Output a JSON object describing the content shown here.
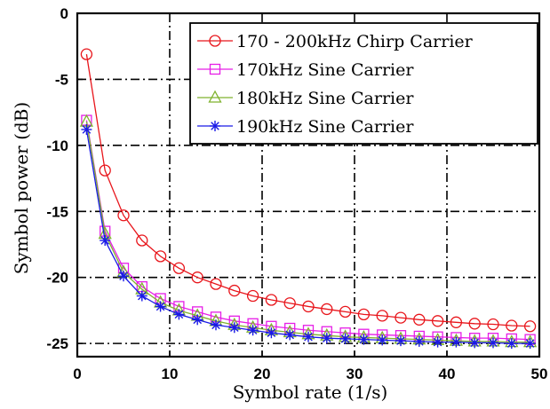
{
  "chart_data": {
    "type": "line",
    "xlabel": "Symbol rate (1/s)",
    "ylabel": "Symbol power (dB)",
    "xlim": [
      0,
      50
    ],
    "ylim": [
      -26,
      0
    ],
    "xticks": [
      0,
      10,
      20,
      30,
      40,
      50
    ],
    "yticks": [
      0,
      -5,
      -10,
      -15,
      -20,
      -25
    ],
    "grid": "dash-dot, major ticks",
    "legend_position": "top-right",
    "x": [
      1,
      3,
      5,
      7,
      9,
      11,
      13,
      15,
      17,
      19,
      21,
      23,
      25,
      27,
      29,
      31,
      33,
      35,
      37,
      39,
      41,
      43,
      45,
      47,
      49
    ],
    "series": [
      {
        "name": "170 - 200kHz Chirp Carrier",
        "color": "#e8151b",
        "marker": "circle",
        "values": [
          -3.1,
          -11.9,
          -15.3,
          -17.2,
          -18.4,
          -19.3,
          -20.0,
          -20.5,
          -21.0,
          -21.4,
          -21.7,
          -21.95,
          -22.2,
          -22.4,
          -22.6,
          -22.8,
          -22.9,
          -23.05,
          -23.2,
          -23.3,
          -23.4,
          -23.5,
          -23.55,
          -23.65,
          -23.7
        ]
      },
      {
        "name": "170kHz Sine Carrier",
        "color": "#e61ee6",
        "marker": "square",
        "values": [
          -8.1,
          -16.5,
          -19.3,
          -20.7,
          -21.6,
          -22.2,
          -22.6,
          -23.0,
          -23.3,
          -23.5,
          -23.7,
          -23.85,
          -24.0,
          -24.1,
          -24.2,
          -24.3,
          -24.35,
          -24.4,
          -24.45,
          -24.5,
          -24.55,
          -24.6,
          -24.6,
          -24.65,
          -24.7
        ]
      },
      {
        "name": "180kHz Sine Carrier",
        "color": "#7fb22e",
        "marker": "triangle",
        "values": [
          -8.2,
          -16.7,
          -19.6,
          -20.9,
          -21.9,
          -22.5,
          -22.9,
          -23.3,
          -23.6,
          -23.8,
          -24.0,
          -24.15,
          -24.3,
          -24.4,
          -24.5,
          -24.55,
          -24.6,
          -24.65,
          -24.7,
          -24.75,
          -24.8,
          -24.85,
          -24.85,
          -24.9,
          -24.9
        ]
      },
      {
        "name": "190kHz Sine Carrier",
        "color": "#1a1ae6",
        "marker": "asterisk",
        "values": [
          -8.8,
          -17.2,
          -19.9,
          -21.4,
          -22.2,
          -22.8,
          -23.2,
          -23.6,
          -23.8,
          -24.0,
          -24.2,
          -24.35,
          -24.5,
          -24.6,
          -24.65,
          -24.7,
          -24.75,
          -24.8,
          -24.85,
          -24.9,
          -24.9,
          -24.95,
          -24.95,
          -25.0,
          -25.0
        ]
      }
    ]
  }
}
